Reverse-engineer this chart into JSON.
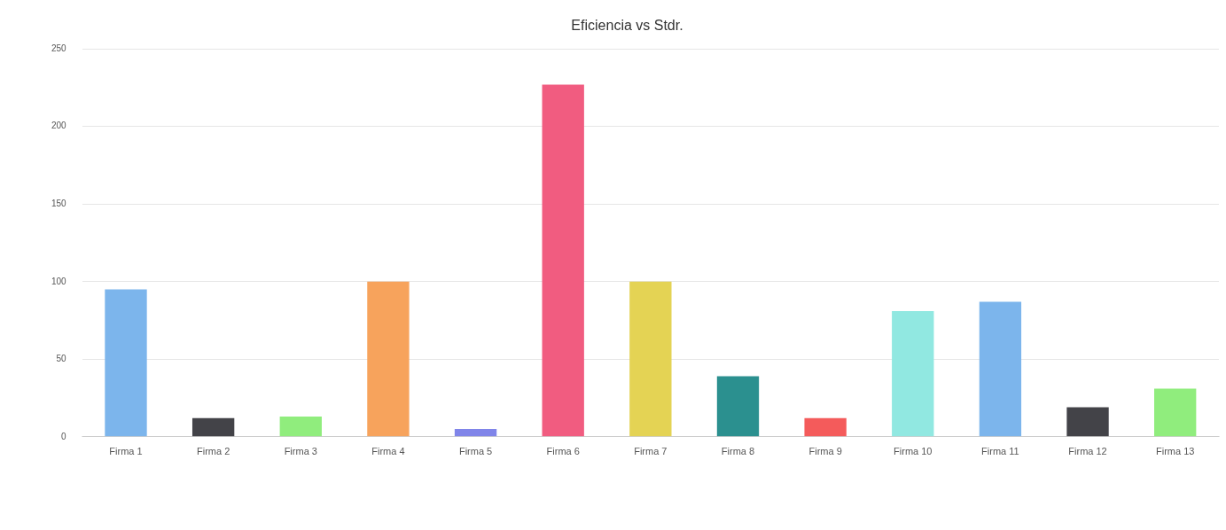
{
  "chart_data": {
    "type": "bar",
    "title": "Eficiencia vs Stdr.",
    "categories": [
      "Firma 1",
      "Firma 2",
      "Firma 3",
      "Firma 4",
      "Firma 5",
      "Firma 6",
      "Firma 7",
      "Firma 8",
      "Firma 9",
      "Firma 10",
      "Firma 11",
      "Firma 12",
      "Firma 13"
    ],
    "values": [
      95,
      12,
      13,
      100,
      5,
      227,
      100,
      39,
      12,
      81,
      87,
      19,
      31
    ],
    "colors": [
      "#7cb5ec",
      "#434348",
      "#90ed7d",
      "#f7a35c",
      "#8085e9",
      "#f15c80",
      "#e4d354",
      "#2b908f",
      "#f45b5b",
      "#91e8e1",
      "#7cb5ec",
      "#434348",
      "#90ed7d"
    ],
    "ylim": [
      0,
      250
    ],
    "yticks": [
      0,
      50,
      100,
      150,
      200,
      250
    ],
    "grid": "y",
    "legend": false
  }
}
